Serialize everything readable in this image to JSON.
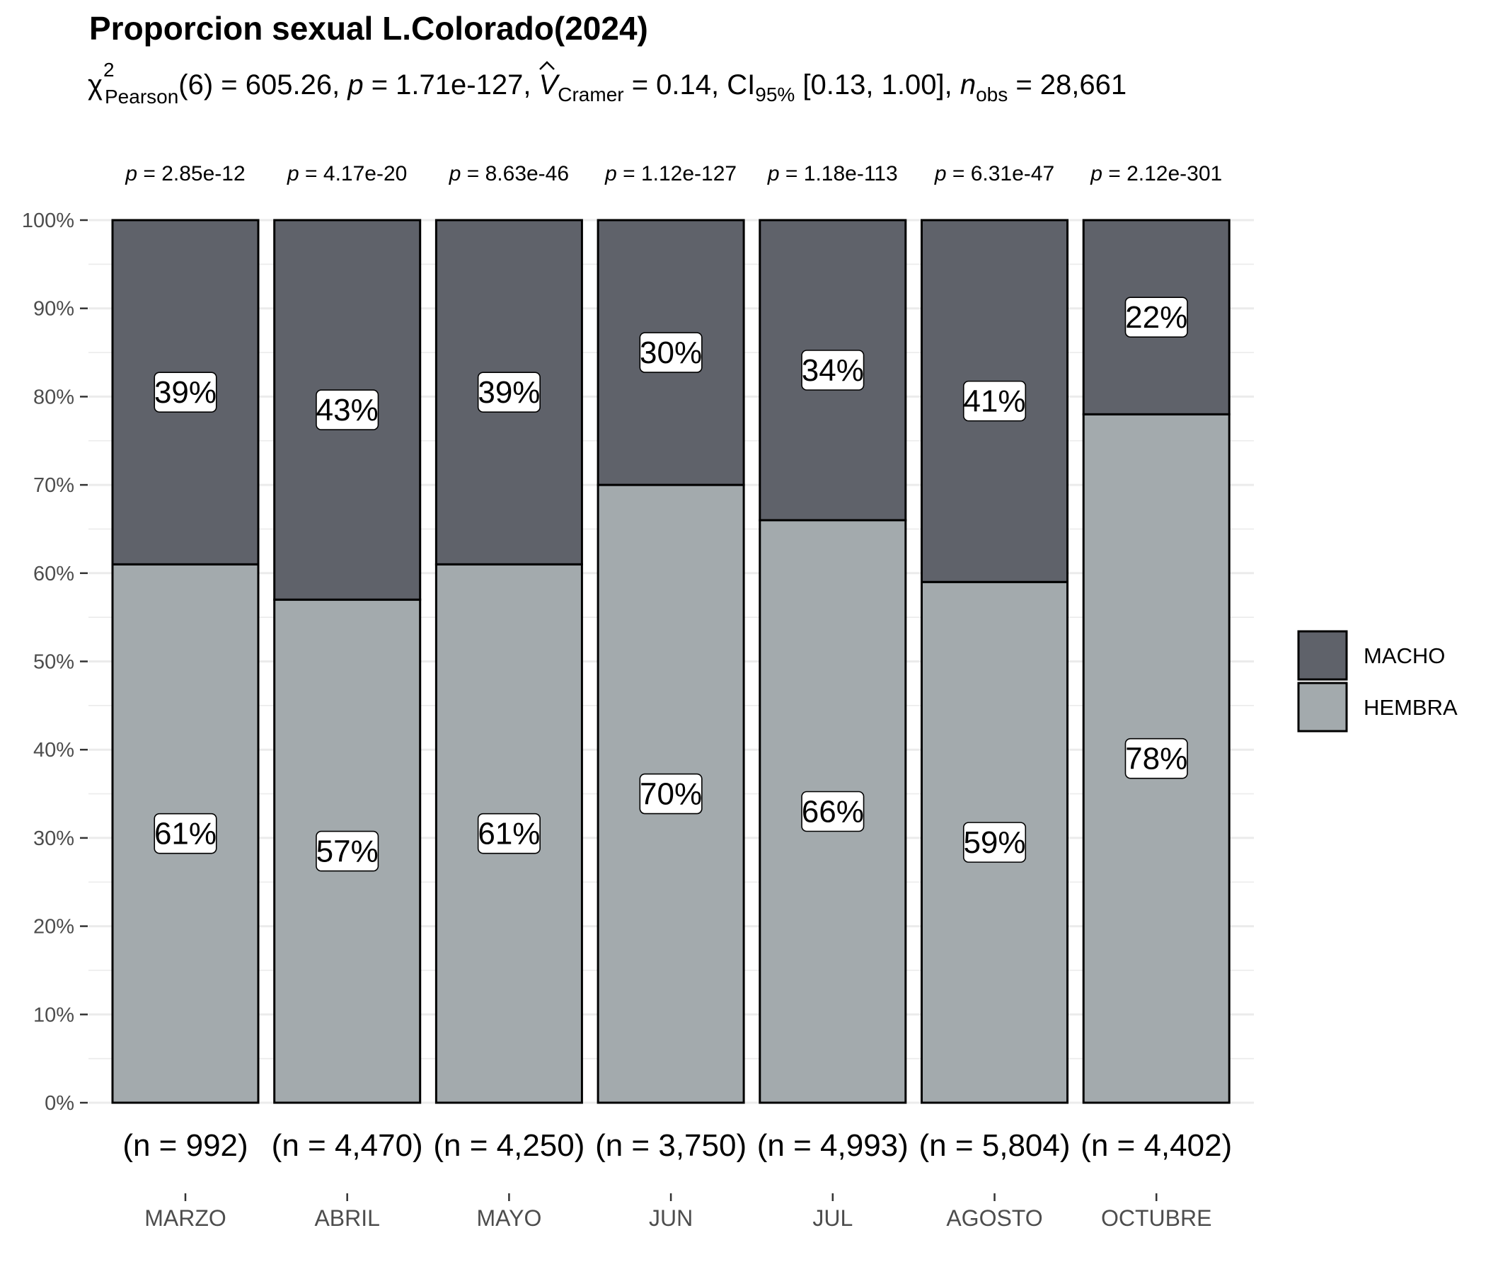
{
  "title": "Proporcion sexual L.Colorado(2024)",
  "subtitle": {
    "chi_symbol": "χ",
    "chi_sup": "2",
    "chi_sub": "Pearson",
    "chi_rest": "(6) = 605.26, ",
    "p_symbol": "p",
    "p_rest": " = 1.71e-127, ",
    "v_symbol": "V",
    "v_hat": "^",
    "v_sub": "Cramer",
    "v_rest": " = 0.14, CI",
    "ci_sub": "95%",
    "ci_rest": " [0.13, 1.00], ",
    "n_symbol": "n",
    "n_sub": "obs",
    "n_rest": " = 28,661"
  },
  "colors": {
    "macho": "#5f626a",
    "hembra": "#a3aaad",
    "grid": "#ebebeb",
    "tick_text": "#4d4d4d",
    "bar_border": "#000000",
    "label_bg": "#ffffff"
  },
  "legend": {
    "placement": "right",
    "items": [
      {
        "key": "macho",
        "label": "MACHO"
      },
      {
        "key": "hembra",
        "label": "HEMBRA"
      }
    ]
  },
  "chart_data": {
    "type": "bar",
    "stacked": true,
    "percent": true,
    "title": "Proporcion sexual L.Colorado(2024)",
    "xlabel": "",
    "ylabel": "",
    "ylim": [
      0,
      100
    ],
    "y_ticks": [
      "0%",
      "10%",
      "20%",
      "30%",
      "40%",
      "50%",
      "60%",
      "70%",
      "80%",
      "90%",
      "100%"
    ],
    "categories": [
      "MARZO",
      "ABRIL",
      "MAYO",
      "JUN",
      "JUL",
      "AGOSTO",
      "OCTUBRE"
    ],
    "series": [
      {
        "name": "HEMBRA",
        "key": "hembra",
        "values": [
          61,
          57,
          61,
          70,
          66,
          59,
          78
        ],
        "labels": [
          "61%",
          "57%",
          "61%",
          "70%",
          "66%",
          "59%",
          "78%"
        ]
      },
      {
        "name": "MACHO",
        "key": "macho",
        "values": [
          39,
          43,
          39,
          30,
          34,
          41,
          22
        ],
        "labels": [
          "39%",
          "43%",
          "39%",
          "30%",
          "34%",
          "41%",
          "22%"
        ]
      }
    ],
    "top_labels": [
      "= 2.85e-12",
      "= 4.17e-20",
      "= 8.63e-46",
      "= 1.12e-127",
      "= 1.18e-113",
      "= 6.31e-47",
      "= 2.12e-301"
    ],
    "top_label_prefix": "p",
    "n_labels": [
      "(n = 992)",
      "(n = 4,470)",
      "(n = 4,250)",
      "(n = 3,750)",
      "(n = 4,993)",
      "(n = 5,804)",
      "(n = 4,402)"
    ],
    "grid": true
  }
}
